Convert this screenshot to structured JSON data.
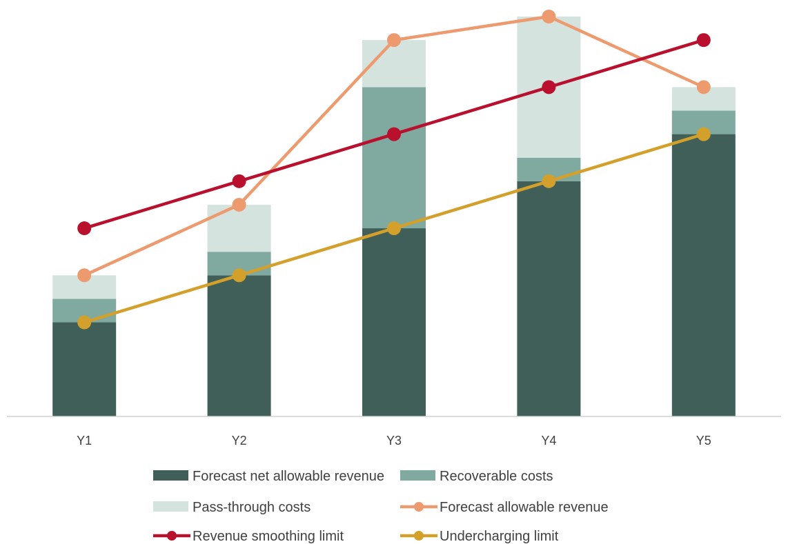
{
  "chart_data": {
    "type": "bar",
    "stacked": true,
    "categories": [
      "Y1",
      "Y2",
      "Y3",
      "Y4",
      "Y5"
    ],
    "ylim": [
      0,
      17
    ],
    "grid": false,
    "legend_position": "bottom",
    "series": [
      {
        "name": "Forecast net allowable revenue",
        "type": "bar",
        "color": "#3f5f58",
        "values": [
          4,
          6,
          8,
          10,
          12
        ]
      },
      {
        "name": "Recoverable costs",
        "type": "bar",
        "color": "#80aaa0",
        "values": [
          1,
          1,
          6,
          1,
          1
        ]
      },
      {
        "name": "Pass-through costs",
        "type": "bar",
        "color": "#d5e3df",
        "values": [
          1,
          2,
          2,
          6,
          1
        ]
      },
      {
        "name": "Forecast allowable revenue",
        "type": "line",
        "color": "#ec9a6e",
        "values": [
          6,
          9,
          16,
          17,
          14
        ]
      },
      {
        "name": "Revenue smoothing limit",
        "type": "line",
        "color": "#b8102d",
        "values": [
          8,
          10,
          12,
          14,
          16
        ]
      },
      {
        "name": "Undercharging limit",
        "type": "line",
        "color": "#d4a02c",
        "values": [
          4,
          6,
          8,
          10,
          12
        ]
      }
    ]
  }
}
